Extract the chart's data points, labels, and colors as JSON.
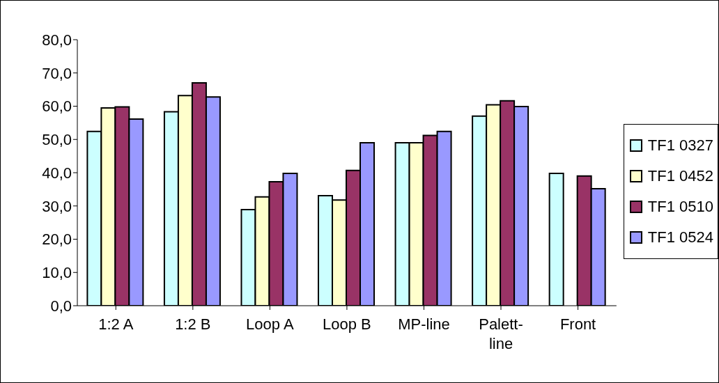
{
  "chart_data": {
    "type": "bar",
    "categories": [
      "1:2 A",
      "1:2 B",
      "Loop A",
      "Loop B",
      "MP-line",
      "Palett-line",
      "Front"
    ],
    "series": [
      {
        "name": "TF1 0327",
        "color": "#ccffff",
        "values": [
          52.4,
          58.3,
          28.9,
          33.1,
          49.0,
          57.0,
          39.8
        ]
      },
      {
        "name": "TF1 0452",
        "color": "#ffffcc",
        "values": [
          59.5,
          63.2,
          32.7,
          31.8,
          49.0,
          60.4,
          null
        ]
      },
      {
        "name": "TF1 0510",
        "color": "#993366",
        "values": [
          59.8,
          67.0,
          37.3,
          40.7,
          51.2,
          61.6,
          39.0
        ]
      },
      {
        "name": "TF1 0524",
        "color": "#9999ff",
        "values": [
          56.1,
          62.8,
          39.8,
          49.0,
          52.4,
          59.9,
          35.2
        ]
      }
    ],
    "ylim": [
      0,
      80
    ],
    "yticks": [
      {
        "value": 0,
        "label": "0,0"
      },
      {
        "value": 10,
        "label": "10,0"
      },
      {
        "value": 20,
        "label": "20,0"
      },
      {
        "value": 30,
        "label": "30,0"
      },
      {
        "value": 40,
        "label": "40,0"
      },
      {
        "value": 50,
        "label": "50,0"
      },
      {
        "value": 60,
        "label": "60,0"
      },
      {
        "value": 70,
        "label": "70,0"
      },
      {
        "value": 80,
        "label": "80,0"
      }
    ],
    "grid": false,
    "legend": "right"
  }
}
